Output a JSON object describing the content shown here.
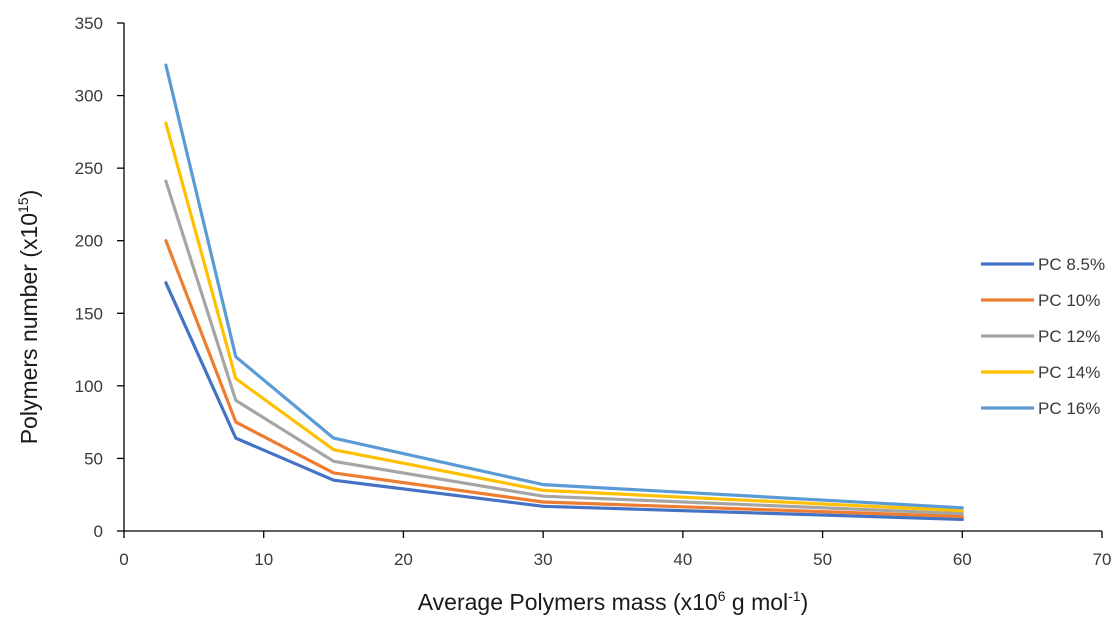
{
  "chart_data": {
    "type": "line",
    "title": "",
    "xlabel": {
      "main": "Average Polymers mass (x10",
      "sup": "6",
      "mid": " g mol",
      "sup2": "-1",
      "end": ")"
    },
    "ylabel": {
      "main": "Polymers number (x10",
      "sup": "15",
      "end": ")"
    },
    "xlim": [
      0,
      70
    ],
    "ylim": [
      0,
      350
    ],
    "x_ticks": [
      0,
      10,
      20,
      30,
      40,
      50,
      60,
      70
    ],
    "y_ticks": [
      0,
      50,
      100,
      150,
      200,
      250,
      300,
      350
    ],
    "grid": false,
    "legend_position": "right",
    "x": [
      3,
      8,
      15,
      30,
      60
    ],
    "series": [
      {
        "name": "PC 8.5%",
        "color": "#4472C4",
        "values": [
          171,
          64,
          35,
          17,
          8
        ]
      },
      {
        "name": "PC 10%",
        "color": "#ED7D31",
        "values": [
          200,
          75,
          40,
          20,
          10
        ]
      },
      {
        "name": "PC 12%",
        "color": "#A5A5A5",
        "values": [
          241,
          90,
          48,
          24,
          12
        ]
      },
      {
        "name": "PC 14%",
        "color": "#FFC000",
        "values": [
          281,
          105,
          56,
          28,
          14
        ]
      },
      {
        "name": "PC 16%",
        "color": "#5B9BD5",
        "values": [
          321,
          120,
          64,
          32,
          16
        ]
      }
    ]
  }
}
